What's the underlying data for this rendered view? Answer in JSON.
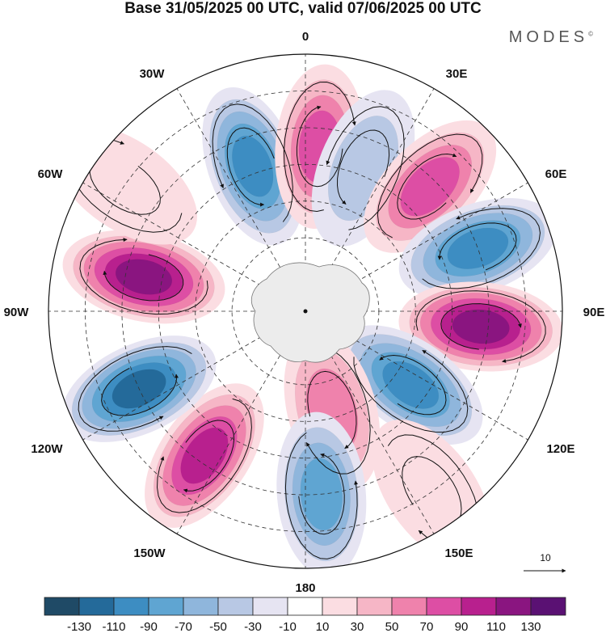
{
  "title": "Base 31/05/2025 00 UTC, valid 07/06/2025 00 UTC",
  "brand": "MODES",
  "brand_mark": "©",
  "longitude_labels": {
    "deg0": "0",
    "e30": "30E",
    "e60": "60E",
    "e90": "90E",
    "e120": "120E",
    "e150": "150E",
    "deg180": "180",
    "w150": "150W",
    "w120": "120W",
    "w90": "90W",
    "w60": "60W",
    "w30": "30W"
  },
  "reference_vector_label": "10",
  "colorbar": {
    "ticks": [
      "-130",
      "-110",
      "-90",
      "-70",
      "-50",
      "-30",
      "-10",
      "10",
      "30",
      "50",
      "70",
      "90",
      "110",
      "130"
    ],
    "colors": [
      "#1f4a66",
      "#246a9a",
      "#3d8dc2",
      "#5fa5d2",
      "#8fb6dc",
      "#b8c8e4",
      "#e6e4f2",
      "#ffffff",
      "#fbdde2",
      "#f6b6c6",
      "#ef82ac",
      "#dd4ea4",
      "#b8208e",
      "#8a1580",
      "#5a1173"
    ]
  },
  "anomaly_centers": [
    {
      "lon": -20,
      "lat": -48,
      "value": -110
    },
    {
      "lon": 5,
      "lat": -45,
      "value": 80
    },
    {
      "lon": 22,
      "lat": -48,
      "value": -40
    },
    {
      "lon": 45,
      "lat": -42,
      "value": 80
    },
    {
      "lon": 70,
      "lat": -40,
      "value": -100
    },
    {
      "lon": 95,
      "lat": -42,
      "value": 130
    },
    {
      "lon": 125,
      "lat": -55,
      "value": -100
    },
    {
      "lon": 165,
      "lat": -62,
      "value": 60
    },
    {
      "lon": 175,
      "lat": -40,
      "value": -80
    },
    {
      "lon": 145,
      "lat": -30,
      "value": 20
    },
    {
      "lon": -145,
      "lat": -42,
      "value": 100
    },
    {
      "lon": -115,
      "lat": -40,
      "value": -120
    },
    {
      "lon": -78,
      "lat": -45,
      "value": 130
    },
    {
      "lon": -55,
      "lat": -30,
      "value": 20
    }
  ]
}
